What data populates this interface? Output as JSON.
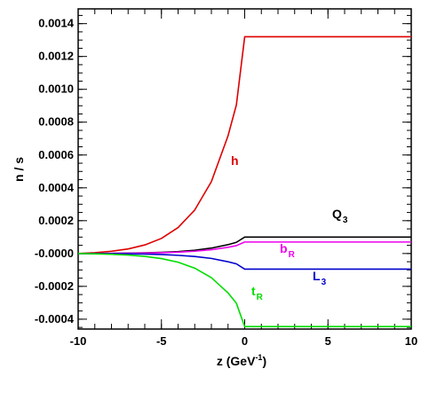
{
  "chart_data": {
    "type": "line",
    "xlabel_main": "z (GeV",
    "xlabel_sup": "-1",
    "xlabel_close": ")",
    "ylabel": "n / s",
    "xlim": [
      -10,
      10
    ],
    "ylim": [
      -0.00046,
      0.00149
    ],
    "x_ticks": [
      -10,
      -5,
      0,
      5,
      10
    ],
    "y_ticks": [
      -0.0004,
      -0.0002,
      0.0,
      0.0002,
      0.0004,
      0.0006,
      0.0008,
      0.001,
      0.0012,
      0.0014
    ],
    "x_tick_labels": [
      "-10",
      "-5",
      "0",
      "5",
      "10"
    ],
    "y_tick_labels": [
      "-0.0004",
      "-0.0002",
      "-0.0000",
      "0.0002",
      "0.0004",
      "0.0006",
      "0.0008",
      "0.0010",
      "0.0012",
      "0.0014"
    ],
    "grid": false,
    "legend": "none",
    "x": [
      -10,
      -9,
      -8,
      -7,
      -6,
      -5,
      -4,
      -3,
      -2,
      -1,
      -0.5,
      0,
      2,
      4,
      6,
      8,
      10
    ],
    "series": [
      {
        "name": "h",
        "color": "#dd0000",
        "values": [
          0.0,
          5e-06,
          1.4e-05,
          2.8e-05,
          5.2e-05,
          9.2e-05,
          0.000158,
          0.000265,
          0.000438,
          0.000717,
          0.000905,
          0.00132,
          0.00132,
          0.00132,
          0.00132,
          0.00132,
          0.00132
        ]
      },
      {
        "name": "Q",
        "sub": "3",
        "color": "#000000",
        "values": [
          0.0,
          4e-07,
          1e-06,
          2.2e-06,
          4e-06,
          7e-06,
          1.2e-05,
          2e-05,
          3.3e-05,
          5.4e-05,
          6.8e-05,
          0.0001,
          0.0001,
          0.0001,
          0.0001,
          0.0001,
          0.0001
        ]
      },
      {
        "name": "b",
        "sub": "R",
        "color": "#ee00ee",
        "values": [
          0.0,
          3e-07,
          8e-07,
          1.6e-06,
          3e-06,
          5e-06,
          8.5e-06,
          1.4e-05,
          2.3e-05,
          3.8e-05,
          4.8e-05,
          7e-05,
          7e-05,
          7e-05,
          7e-05,
          7e-05,
          7e-05
        ]
      },
      {
        "name": "L",
        "sub": "3",
        "color": "#0000cc",
        "values": [
          0.0,
          -4e-07,
          -1e-06,
          -2e-06,
          -3.5e-06,
          -6e-06,
          -1.1e-05,
          -1.8e-05,
          -3e-05,
          -5e-05,
          -6.3e-05,
          -9.5e-05,
          -9.5e-05,
          -9.5e-05,
          -9.5e-05,
          -9.5e-05,
          -9.5e-05
        ]
      },
      {
        "name": "t",
        "sub": "R",
        "color": "#00dd00",
        "values": [
          0.0,
          -1.7e-06,
          -4.8e-06,
          -9.5e-06,
          -1.75e-05,
          -3.1e-05,
          -5.3e-05,
          -8.9e-05,
          -0.000147,
          -0.00024,
          -0.000303,
          -0.000445,
          -0.000445,
          -0.000445,
          -0.000445,
          -0.000445,
          -0.000445
        ]
      }
    ]
  }
}
